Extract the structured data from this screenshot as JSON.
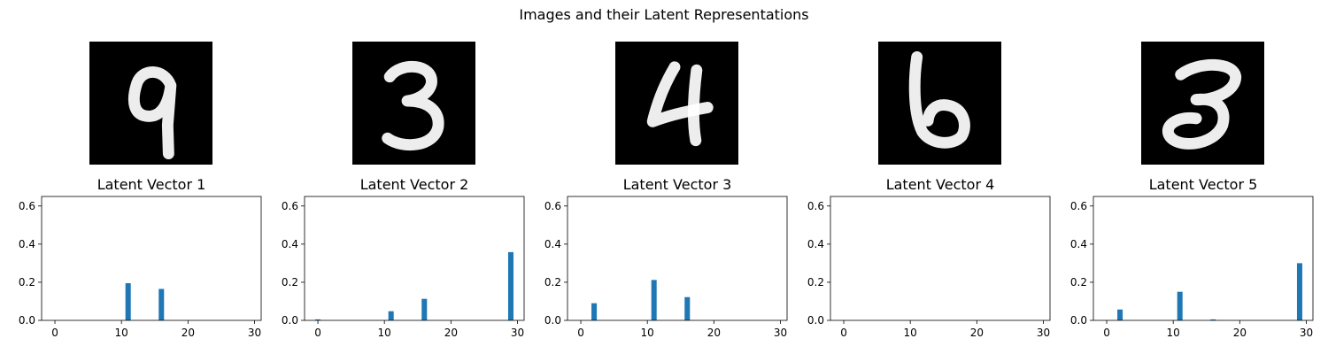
{
  "figure": {
    "suptitle": "Images and their Latent Representations"
  },
  "images": [
    {
      "digit": "9",
      "alt": "handwritten digit 9"
    },
    {
      "digit": "3",
      "alt": "handwritten digit 3"
    },
    {
      "digit": "4",
      "alt": "handwritten digit 4"
    },
    {
      "digit": "6",
      "alt": "handwritten digit 6"
    },
    {
      "digit": "3",
      "alt": "handwritten digit 3"
    }
  ],
  "colors": {
    "bar": "#1f77b4",
    "image_background": "#000000",
    "stroke": "#ffffff"
  },
  "chart_data": [
    {
      "type": "bar",
      "title": "Latent Vector 1",
      "xlim": [
        -2,
        31
      ],
      "ylim": [
        0,
        0.65
      ],
      "xticks": [
        0,
        10,
        20,
        30
      ],
      "yticks": [
        0.0,
        0.2,
        0.4,
        0.6
      ],
      "x": [
        11,
        16
      ],
      "values": [
        0.195,
        0.165
      ],
      "grid": false
    },
    {
      "type": "bar",
      "title": "Latent Vector 2",
      "xlim": [
        -2,
        31
      ],
      "ylim": [
        0,
        0.65
      ],
      "xticks": [
        0,
        10,
        20,
        30
      ],
      "yticks": [
        0.0,
        0.2,
        0.4,
        0.6
      ],
      "x": [
        0,
        11,
        16,
        29
      ],
      "values": [
        0.005,
        0.048,
        0.113,
        0.358
      ],
      "grid": false
    },
    {
      "type": "bar",
      "title": "Latent Vector 3",
      "xlim": [
        -2,
        31
      ],
      "ylim": [
        0,
        0.65
      ],
      "xticks": [
        0,
        10,
        20,
        30
      ],
      "yticks": [
        0.0,
        0.2,
        0.4,
        0.6
      ],
      "x": [
        2,
        11,
        16
      ],
      "values": [
        0.09,
        0.212,
        0.122
      ],
      "grid": false
    },
    {
      "type": "bar",
      "title": "Latent Vector 4",
      "xlim": [
        -2,
        31
      ],
      "ylim": [
        0,
        0.65
      ],
      "xticks": [
        0,
        10,
        20,
        30
      ],
      "yticks": [
        0.0,
        0.2,
        0.4,
        0.6
      ],
      "x": [],
      "values": [],
      "grid": false
    },
    {
      "type": "bar",
      "title": "Latent Vector 5",
      "xlim": [
        -2,
        31
      ],
      "ylim": [
        0,
        0.65
      ],
      "xticks": [
        0,
        10,
        20,
        30
      ],
      "yticks": [
        0.0,
        0.2,
        0.4,
        0.6
      ],
      "x": [
        2,
        11,
        16,
        29
      ],
      "values": [
        0.057,
        0.15,
        0.005,
        0.3
      ],
      "grid": false
    }
  ]
}
